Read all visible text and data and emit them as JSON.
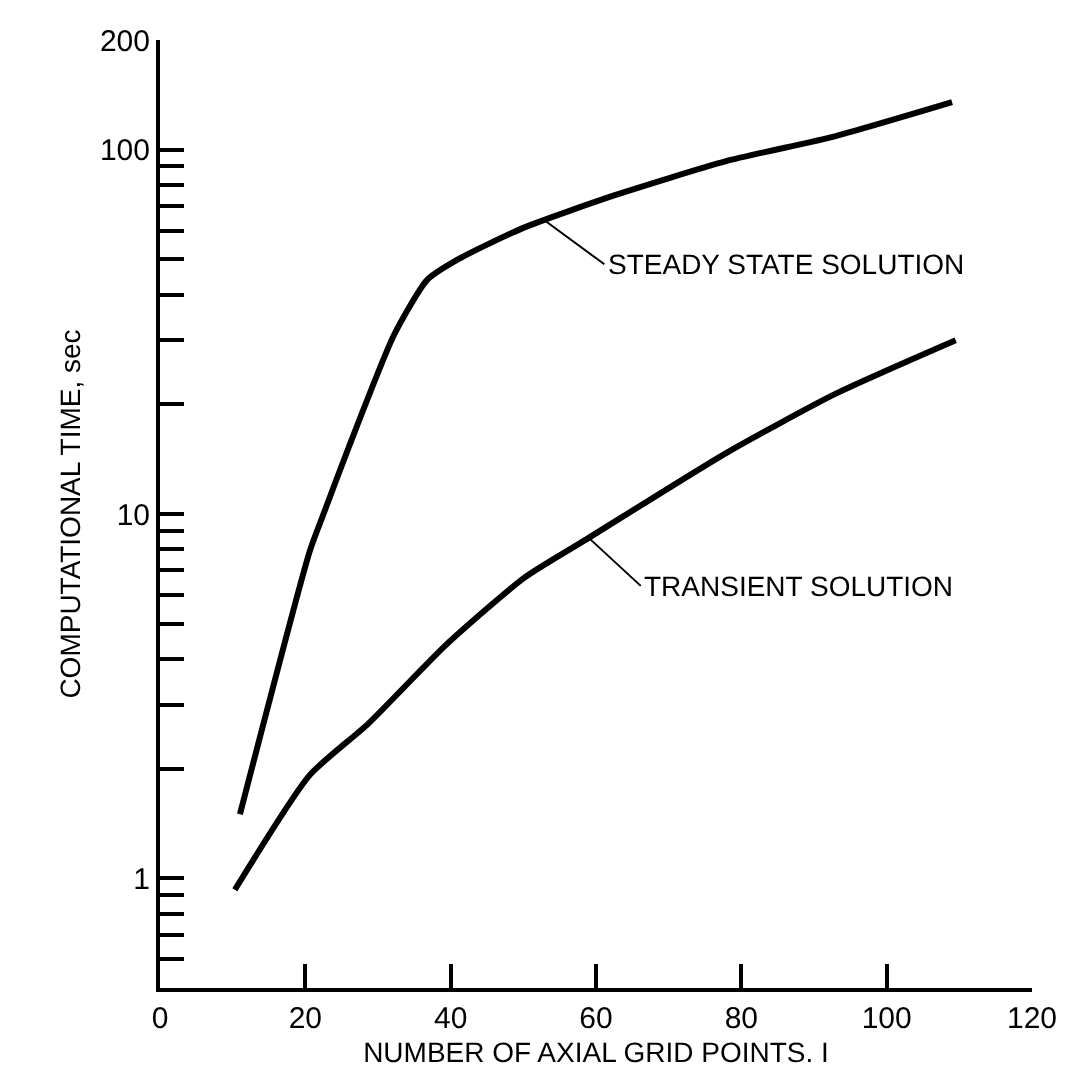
{
  "chart_data": {
    "type": "line",
    "xlabel": "NUMBER OF AXIAL GRID POINTS. I",
    "ylabel": "COMPUTATIONAL TIME, sec",
    "series": [
      {
        "color": "#000000",
        "x": [
          11,
          20.6,
          22.5,
          26,
          32.2,
          36.8,
          41,
          50,
          62.6,
          77.9,
          93,
          109
        ],
        "values": [
          1.5,
          7.9,
          10,
          15.3,
          31,
          44,
          50,
          61,
          75,
          93,
          109,
          135
        ]
      },
      {
        "color": "#000000",
        "x": [
          10.3,
          20.6,
          28.6,
          39.4,
          50.2,
          59,
          77.9,
          93,
          109.5
        ],
        "values": [
          0.93,
          1.92,
          2.65,
          4.38,
          6.7,
          8.6,
          14.7,
          21.4,
          30
        ]
      }
    ],
    "annotations": [
      {
        "text": "STEADY STATE SOLUTION",
        "x": 52.9,
        "y": 64
      },
      {
        "text": "TRANSIENT SOLUTION",
        "x": 59,
        "y": 8.6
      }
    ],
    "log": "y",
    "xlim": [
      0,
      120
    ],
    "ylim": [
      0.5,
      200
    ],
    "xticks": [
      0,
      20,
      40,
      60,
      80,
      100,
      120
    ],
    "yticks": [
      {
        "value": 0.6,
        "label": null
      },
      {
        "value": 0.7,
        "label": null
      },
      {
        "value": 0.8,
        "label": null
      },
      {
        "value": 0.9,
        "label": null
      },
      1,
      {
        "value": 2,
        "label": null
      },
      {
        "value": 3,
        "label": null
      },
      {
        "value": 4,
        "label": null
      },
      {
        "value": 5,
        "label": null
      },
      {
        "value": 6,
        "label": null
      },
      {
        "value": 7,
        "label": null
      },
      {
        "value": 8,
        "label": null
      },
      {
        "value": 9,
        "label": null
      },
      10,
      {
        "value": 20,
        "label": null
      },
      {
        "value": 30,
        "label": null
      },
      {
        "value": 40,
        "label": null
      },
      {
        "value": 50,
        "label": null
      },
      {
        "value": 60,
        "label": null
      },
      {
        "value": 70,
        "label": null
      },
      {
        "value": 80,
        "label": null
      },
      {
        "value": 90,
        "label": null
      },
      100,
      200
    ],
    "marker": "none",
    "line_style": "solid"
  }
}
